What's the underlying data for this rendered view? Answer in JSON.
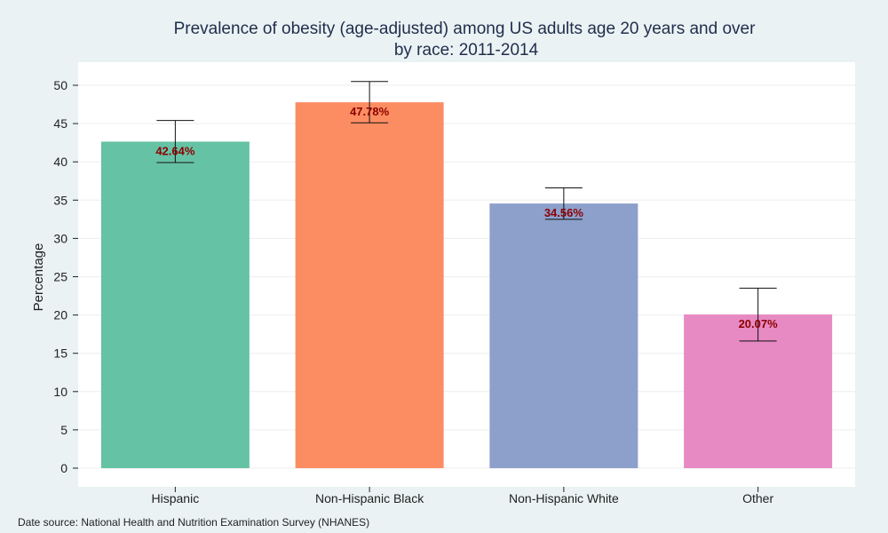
{
  "chart_data": {
    "type": "bar",
    "title": "Prevalence of obesity (age-adjusted) among US adults age 20 years and over",
    "subtitle": "by race: 2011-2014",
    "xlabel": "",
    "ylabel": "Percentage",
    "categories": [
      "Hispanic",
      "Non-Hispanic Black",
      "Non-Hispanic White",
      "Other"
    ],
    "values": [
      42.64,
      47.78,
      34.56,
      20.07
    ],
    "value_labels": [
      "42.64%",
      "47.78%",
      "34.56%",
      "20.07%"
    ],
    "error_low": [
      39.9,
      45.1,
      32.5,
      16.6
    ],
    "error_high": [
      45.4,
      50.5,
      36.6,
      23.5
    ],
    "bar_colors": [
      "#66c2a5",
      "#fc8d62",
      "#8da0cb",
      "#e78ac3"
    ],
    "ylim": [
      0,
      53
    ],
    "yticks": [
      0,
      5,
      10,
      15,
      20,
      25,
      30,
      35,
      40,
      45,
      50
    ],
    "grid": true,
    "legend": "none",
    "source_note": "Date source: National Health and Nutrition Examination Survey (NHANES)"
  }
}
